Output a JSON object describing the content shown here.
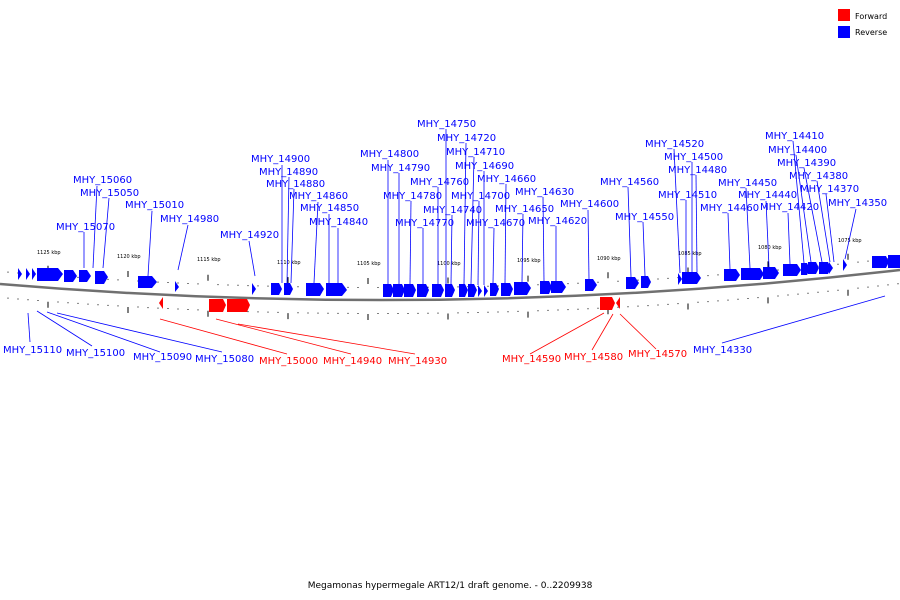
{
  "colors": {
    "forward": "#ff0000",
    "reverse": "#0000ff",
    "backbone": "#707070"
  },
  "legend": [
    {
      "label": "Forward",
      "color": "#ff0000"
    },
    {
      "label": "Reverse",
      "color": "#0000ff"
    }
  ],
  "caption": "Megamonas hypermegale ART12/1 draft genome. - 0..2209938",
  "scale_labels": [
    "1125 kbp",
    "1120 kbp",
    "1115 kbp",
    "1110 kbp",
    "1105 kbp",
    "1100 kbp",
    "1095 kbp",
    "1090 kbp",
    "1085 kbp",
    "1080 kbp",
    "1075 kbp"
  ],
  "reverse_gene_labels": [
    "MHY_15070",
    "MHY_15060",
    "MHY_15050",
    "MHY_15010",
    "MHY_14980",
    "MHY_14920",
    "MHY_14900",
    "MHY_14890",
    "MHY_14880",
    "MHY_14860",
    "MHY_14850",
    "MHY_14840",
    "MHY_14800",
    "MHY_14790",
    "MHY_14780",
    "MHY_14770",
    "MHY_14760",
    "MHY_14750",
    "MHY_14740",
    "MHY_14720",
    "MHY_14710",
    "MHY_14700",
    "MHY_14690",
    "MHY_14670",
    "MHY_14660",
    "MHY_14650",
    "MHY_14630",
    "MHY_14620",
    "MHY_14600",
    "MHY_14560",
    "MHY_14550",
    "MHY_14520",
    "MHY_14510",
    "MHY_14500",
    "MHY_14480",
    "MHY_14460",
    "MHY_14450",
    "MHY_14440",
    "MHY_14420",
    "MHY_14410",
    "MHY_14400",
    "MHY_14390",
    "MHY_14380",
    "MHY_14370",
    "MHY_14350",
    "MHY_15110",
    "MHY_15100",
    "MHY_15090",
    "MHY_15080",
    "MHY_14330"
  ],
  "forward_gene_labels": [
    "MHY_15000",
    "MHY_14940",
    "MHY_14930",
    "MHY_14590",
    "MHY_14580",
    "MHY_14570"
  ]
}
